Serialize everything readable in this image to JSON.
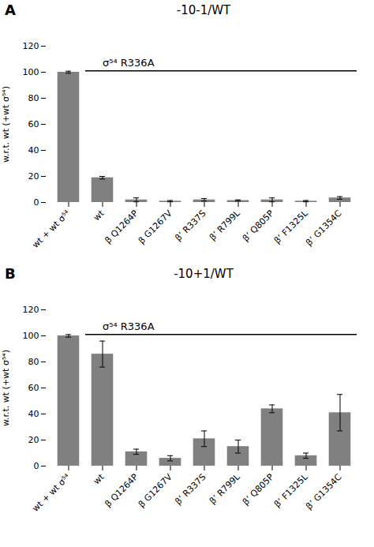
{
  "chart_data": [
    {
      "type": "bar",
      "panel_label": "A",
      "title": "-10-1/WT",
      "y_label": "w.r.t. wt (+wt σ⁵⁴)",
      "categories": [
        "wt + wt σ⁵⁴",
        "wt",
        "β Q1264P",
        "β G1267V",
        "β’ R337S",
        "β’ R799L",
        "β’ Q805P",
        "β’ F1325L",
        "β’ G1354C"
      ],
      "values": [
        100,
        19,
        2,
        1,
        2,
        1.5,
        2,
        1,
        3.5
      ],
      "errors": [
        0.8,
        1.0,
        1.5,
        0.5,
        1.0,
        0.5,
        1.5,
        0.5,
        1.0
      ],
      "color": "#808080",
      "ylim": [
        0,
        120
      ],
      "yticks": [
        0,
        20,
        40,
        60,
        80,
        100,
        120
      ],
      "grid": false,
      "annotations": [
        {
          "text": "σ⁵⁴ R336A",
          "x": [
            "wt",
            "β’ G1354C"
          ],
          "y": 101
        }
      ]
    },
    {
      "type": "bar",
      "panel_label": "B",
      "title": "-10+1/WT",
      "y_label": "w.r.t. wt (+wt σ⁵⁴)",
      "categories": [
        "wt + wt σ⁵⁴",
        "wt",
        "β Q1264P",
        "β G1267V",
        "β’ R337S",
        "β’ R799L",
        "β’ Q805P",
        "β’ F1325L",
        "β’ G1354C"
      ],
      "values": [
        100,
        86,
        11,
        6,
        21,
        15,
        44,
        8,
        41
      ],
      "errors": [
        1.0,
        10.0,
        2.0,
        2.0,
        6.0,
        5.0,
        3.0,
        2.0,
        14.0
      ],
      "color": "#808080",
      "ylim": [
        0,
        120
      ],
      "yticks": [
        0,
        20,
        40,
        60,
        80,
        100,
        120
      ],
      "grid": false,
      "annotations": [
        {
          "text": "σ⁵⁴ R336A",
          "x": [
            "wt",
            "β’ G1354C"
          ],
          "y": 101
        }
      ]
    }
  ]
}
